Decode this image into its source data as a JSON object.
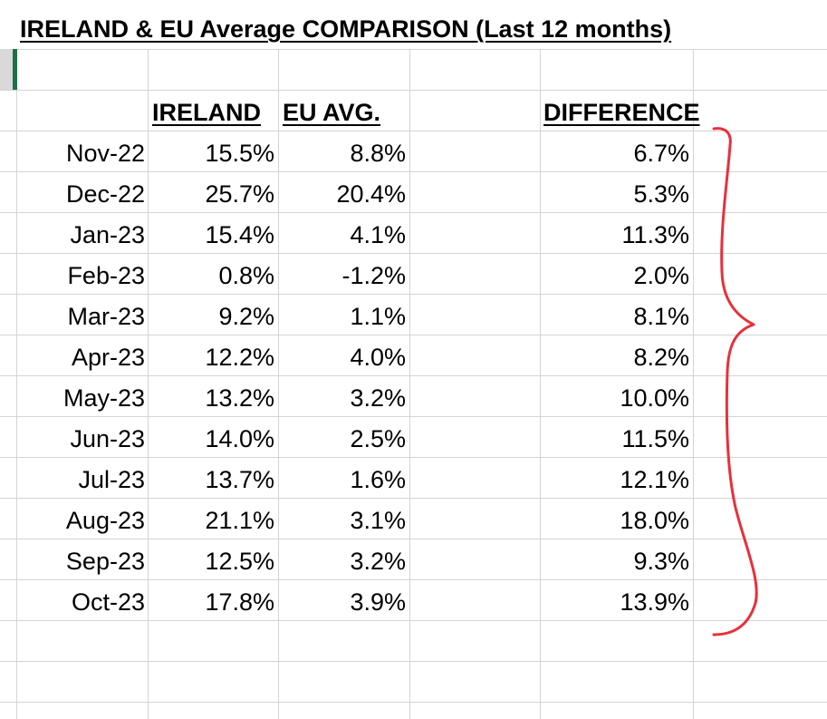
{
  "title": "IRELAND & EU Average COMPARISON (Last 12 months)",
  "headers": {
    "ireland": "IRELAND",
    "eu": "EU AVG.",
    "difference": "DIFFERENCE"
  },
  "rows": [
    {
      "month": "Nov-22",
      "ireland": "15.5%",
      "eu": "8.8%",
      "diff": "6.7%"
    },
    {
      "month": "Dec-22",
      "ireland": "25.7%",
      "eu": "20.4%",
      "diff": "5.3%"
    },
    {
      "month": "Jan-23",
      "ireland": "15.4%",
      "eu": "4.1%",
      "diff": "11.3%"
    },
    {
      "month": "Feb-23",
      "ireland": "0.8%",
      "eu": "-1.2%",
      "diff": "2.0%"
    },
    {
      "month": "Mar-23",
      "ireland": "9.2%",
      "eu": "1.1%",
      "diff": "8.1%"
    },
    {
      "month": "Apr-23",
      "ireland": "12.2%",
      "eu": "4.0%",
      "diff": "8.2%"
    },
    {
      "month": "May-23",
      "ireland": "13.2%",
      "eu": "3.2%",
      "diff": "10.0%"
    },
    {
      "month": "Jun-23",
      "ireland": "14.0%",
      "eu": "2.5%",
      "diff": "11.5%"
    },
    {
      "month": "Jul-23",
      "ireland": "13.7%",
      "eu": "1.6%",
      "diff": "12.1%"
    },
    {
      "month": "Aug-23",
      "ireland": "21.1%",
      "eu": "3.1%",
      "diff": "18.0%"
    },
    {
      "month": "Sep-23",
      "ireland": "12.5%",
      "eu": "3.2%",
      "diff": "9.3%"
    },
    {
      "month": "Oct-23",
      "ireland": "17.8%",
      "eu": "3.9%",
      "diff": "13.9%"
    }
  ],
  "colors": {
    "gridline": "#d4d4d4",
    "selection": "#1e7145",
    "annotation": "#e8303a"
  }
}
